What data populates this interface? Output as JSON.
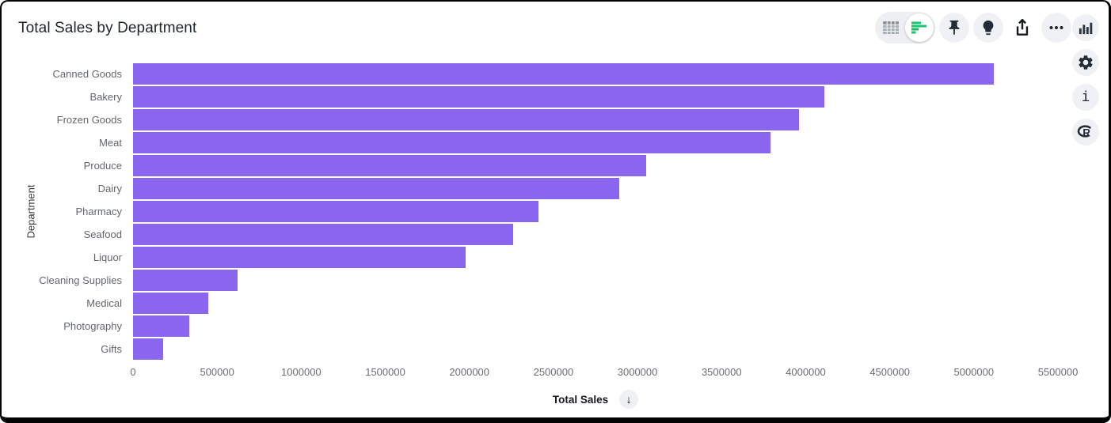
{
  "header": {
    "title": "Total Sales by Department"
  },
  "toolbar": {
    "view_toggle": {
      "options": [
        "table-view",
        "bar-chart-view"
      ],
      "selected": "bar-chart-view"
    },
    "icons": [
      "table-view-icon",
      "bar-chart-view-icon",
      "pin-icon",
      "lightbulb-icon",
      "share-icon",
      "more-options-icon"
    ]
  },
  "right_rail": {
    "icons": [
      "column-chart-icon",
      "settings-gear-icon",
      "info-icon",
      "r-language-icon"
    ],
    "info_glyph": "i"
  },
  "sort_button": {
    "glyph": "↓",
    "direction": "descending"
  },
  "colors": {
    "bar_purple": "#8a66f0",
    "accent_green": "#17c671",
    "icon_dark": "#2b3542",
    "icon_gray": "#9aa1aa",
    "title_text": "#1d2430",
    "axis_text": "#696d73"
  },
  "chart_data": {
    "type": "bar",
    "orientation": "horizontal",
    "title": "Total Sales by Department",
    "xlabel": "Total Sales",
    "ylabel": "Department",
    "categories": [
      "Canned Goods",
      "Bakery",
      "Frozen Goods",
      "Meat",
      "Produce",
      "Dairy",
      "Pharmacy",
      "Seafood",
      "Liquor",
      "Cleaning Supplies",
      "Medical",
      "Photography",
      "Gifts"
    ],
    "values": [
      5120000,
      4110000,
      3960000,
      3790000,
      3050000,
      2890000,
      2410000,
      2260000,
      1980000,
      620000,
      445000,
      335000,
      180000
    ],
    "xlim": [
      0,
      5500000
    ],
    "x_ticks": [
      0,
      500000,
      1000000,
      1500000,
      2000000,
      2500000,
      3000000,
      3500000,
      4000000,
      4500000,
      5000000,
      5500000
    ],
    "bar_color": "#8a66f0",
    "grid": false,
    "legend": "none",
    "sort": "descending"
  }
}
